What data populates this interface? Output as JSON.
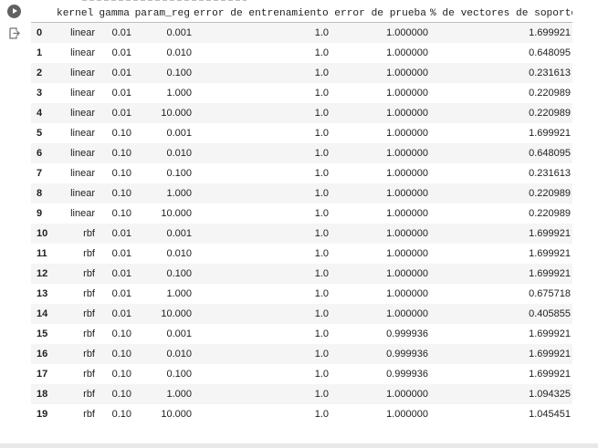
{
  "table": {
    "columns": [
      "",
      "kernel",
      "gamma",
      "param_reg",
      "error de entrenamiento",
      "error de prueba",
      "% de vectores de soporte"
    ],
    "rows": [
      [
        "0",
        "linear",
        "0.01",
        "0.001",
        "1.0",
        "1.000000",
        "1.699921"
      ],
      [
        "1",
        "linear",
        "0.01",
        "0.010",
        "1.0",
        "1.000000",
        "0.648095"
      ],
      [
        "2",
        "linear",
        "0.01",
        "0.100",
        "1.0",
        "1.000000",
        "0.231613"
      ],
      [
        "3",
        "linear",
        "0.01",
        "1.000",
        "1.0",
        "1.000000",
        "0.220989"
      ],
      [
        "4",
        "linear",
        "0.01",
        "10.000",
        "1.0",
        "1.000000",
        "0.220989"
      ],
      [
        "5",
        "linear",
        "0.10",
        "0.001",
        "1.0",
        "1.000000",
        "1.699921"
      ],
      [
        "6",
        "linear",
        "0.10",
        "0.010",
        "1.0",
        "1.000000",
        "0.648095"
      ],
      [
        "7",
        "linear",
        "0.10",
        "0.100",
        "1.0",
        "1.000000",
        "0.231613"
      ],
      [
        "8",
        "linear",
        "0.10",
        "1.000",
        "1.0",
        "1.000000",
        "0.220989"
      ],
      [
        "9",
        "linear",
        "0.10",
        "10.000",
        "1.0",
        "1.000000",
        "0.220989"
      ],
      [
        "10",
        "rbf",
        "0.01",
        "0.001",
        "1.0",
        "1.000000",
        "1.699921"
      ],
      [
        "11",
        "rbf",
        "0.01",
        "0.010",
        "1.0",
        "1.000000",
        "1.699921"
      ],
      [
        "12",
        "rbf",
        "0.01",
        "0.100",
        "1.0",
        "1.000000",
        "1.699921"
      ],
      [
        "13",
        "rbf",
        "0.01",
        "1.000",
        "1.0",
        "1.000000",
        "0.675718"
      ],
      [
        "14",
        "rbf",
        "0.01",
        "10.000",
        "1.0",
        "1.000000",
        "0.405855"
      ],
      [
        "15",
        "rbf",
        "0.10",
        "0.001",
        "1.0",
        "0.999936",
        "1.699921"
      ],
      [
        "16",
        "rbf",
        "0.10",
        "0.010",
        "1.0",
        "0.999936",
        "1.699921"
      ],
      [
        "17",
        "rbf",
        "0.10",
        "0.100",
        "1.0",
        "0.999936",
        "1.699921"
      ],
      [
        "18",
        "rbf",
        "0.10",
        "1.000",
        "1.0",
        "1.000000",
        "1.094325"
      ],
      [
        "19",
        "rbf",
        "0.10",
        "10.000",
        "1.0",
        "1.000000",
        "1.045451"
      ]
    ]
  },
  "icons": {
    "run": "run-cell-icon",
    "output": "output-redirect-icon"
  },
  "colors": {
    "stripe": "#f5f5f5",
    "text": "#212121",
    "run_button": "#616161"
  }
}
